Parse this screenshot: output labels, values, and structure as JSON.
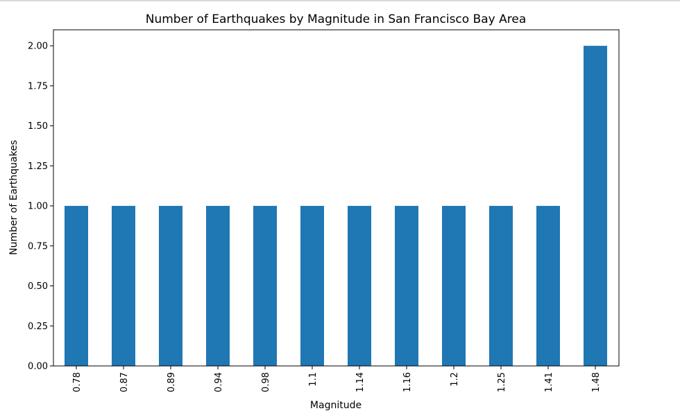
{
  "chart_data": {
    "type": "bar",
    "title": "Number of Earthquakes by Magnitude in San Francisco Bay Area",
    "xlabel": "Magnitude",
    "ylabel": "Number of Earthquakes",
    "categories": [
      "0.78",
      "0.87",
      "0.89",
      "0.94",
      "0.98",
      "1.1",
      "1.14",
      "1.16",
      "1.2",
      "1.25",
      "1.41",
      "1.48"
    ],
    "values": [
      1,
      1,
      1,
      1,
      1,
      1,
      1,
      1,
      1,
      1,
      1,
      2
    ],
    "ylim": [
      0,
      2.1
    ],
    "yticks": [
      "0.00",
      "0.25",
      "0.50",
      "0.75",
      "1.00",
      "1.25",
      "1.50",
      "1.75",
      "2.00"
    ],
    "bar_color": "#1f77b4",
    "grid": false
  }
}
